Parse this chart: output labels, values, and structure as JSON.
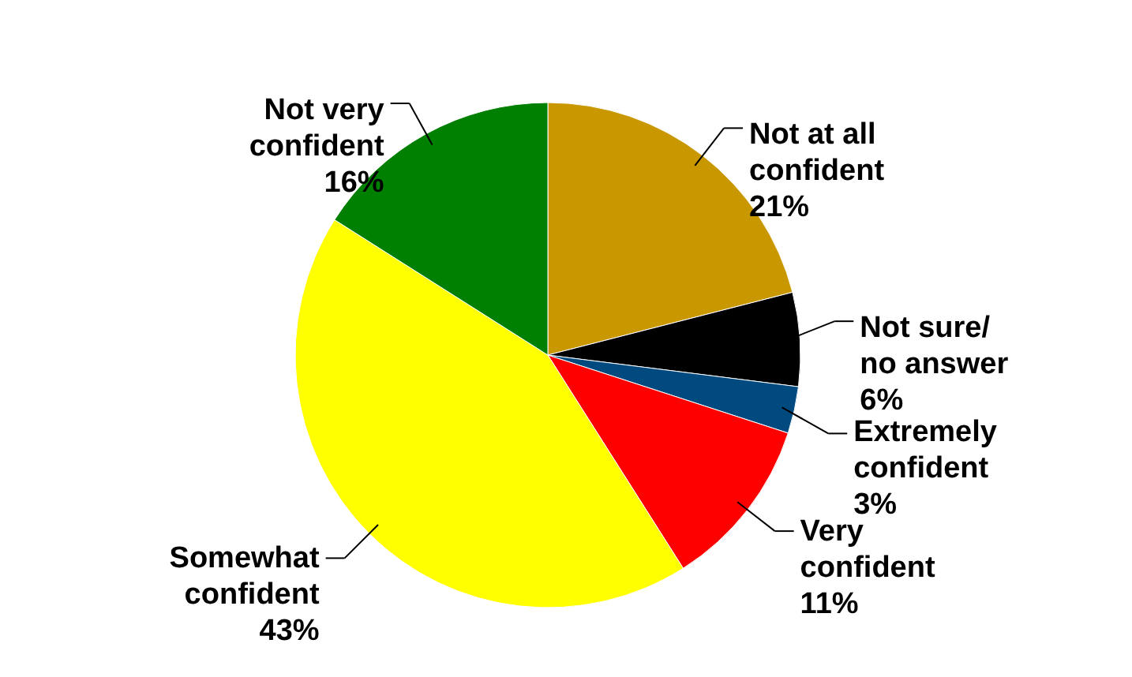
{
  "chart_data": {
    "type": "pie",
    "categories": [
      "Not at all confident",
      "Not sure/ no answer",
      "Extremely confident",
      "Very confident",
      "Somewhat confident",
      "Not very confident"
    ],
    "values": [
      21,
      6,
      3,
      11,
      43,
      16
    ],
    "colors": [
      "#c99700",
      "#000000",
      "#004a80",
      "#ff0000",
      "#ffff00",
      "#008000"
    ],
    "value_labels": [
      "21%",
      "6%",
      "3%",
      "11%",
      "43%",
      "16%"
    ]
  }
}
